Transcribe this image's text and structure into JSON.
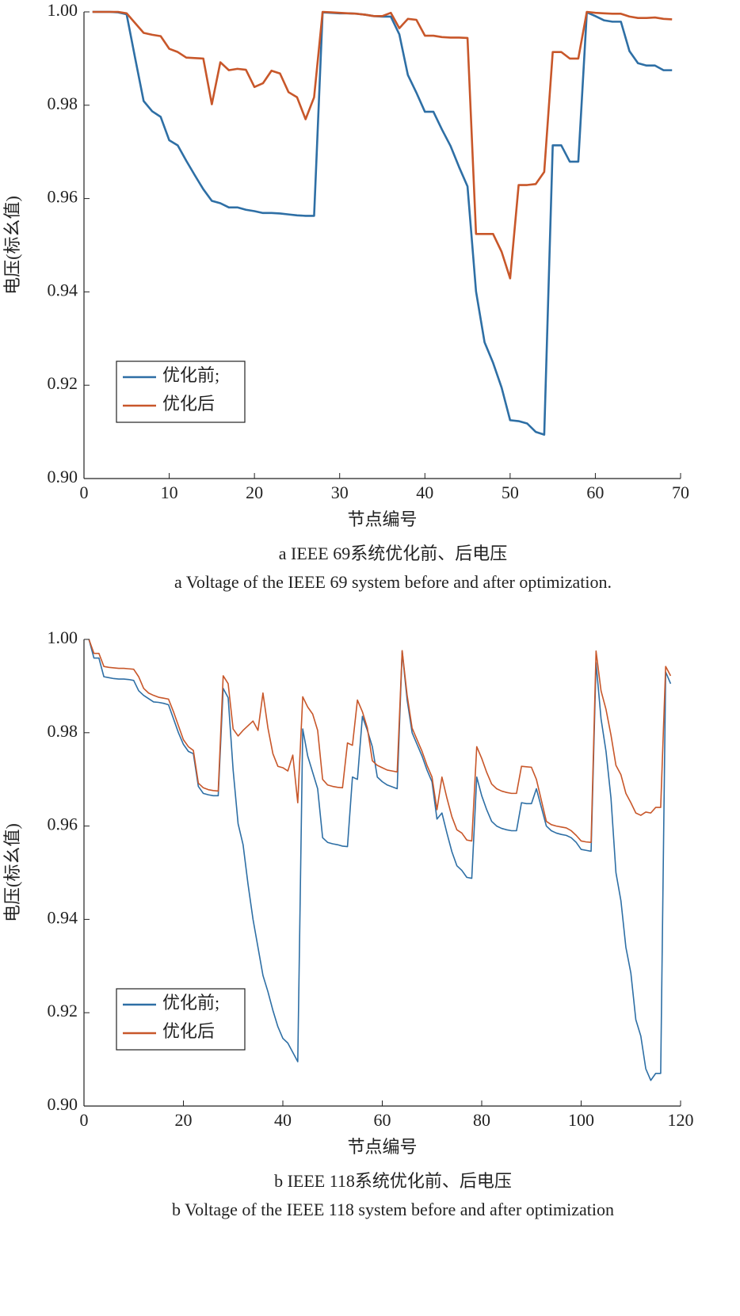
{
  "chart_data": [
    {
      "type": "line",
      "xlabel": "节点编号",
      "ylabel": "电压(标幺值)",
      "caption": "a  IEEE 69系统优化前、后电压",
      "caption_en": "a  Voltage of the IEEE 69 system before and after optimization.",
      "xlim": [
        0,
        70
      ],
      "xticks": [
        0,
        10,
        20,
        30,
        40,
        50,
        60,
        70
      ],
      "ylim": [
        0.9,
        1.0
      ],
      "yticks": [
        {
          "value": 0.9,
          "label": "0.90"
        },
        {
          "value": 0.92,
          "label": "0.92"
        },
        {
          "value": 0.94,
          "label": "0.94"
        },
        {
          "value": 0.96,
          "label": "0.96"
        },
        {
          "value": 0.98,
          "label": "0.98"
        },
        {
          "value": 1.0,
          "label": "1.00"
        }
      ],
      "legend": "lower left",
      "x": [
        1,
        2,
        3,
        4,
        5,
        6,
        7,
        8,
        9,
        10,
        11,
        12,
        13,
        14,
        15,
        16,
        17,
        18,
        19,
        20,
        21,
        22,
        23,
        24,
        25,
        26,
        27,
        28,
        29,
        30,
        31,
        32,
        33,
        34,
        35,
        36,
        37,
        38,
        39,
        40,
        41,
        42,
        43,
        44,
        45,
        46,
        47,
        48,
        49,
        50,
        51,
        52,
        53,
        54,
        55,
        56,
        57,
        58,
        59,
        60,
        61,
        62,
        63,
        64,
        65,
        66,
        67,
        68,
        69
      ],
      "series": [
        {
          "name": "优化前;",
          "color": "#2e6fa5",
          "values": [
            1.0,
            1.0,
            1.0,
            0.9999,
            0.9995,
            0.9901,
            0.9809,
            0.9787,
            0.9775,
            0.9725,
            0.9714,
            0.9681,
            0.965,
            0.962,
            0.9595,
            0.959,
            0.9581,
            0.9581,
            0.9576,
            0.9573,
            0.9569,
            0.9569,
            0.9568,
            0.9566,
            0.9564,
            0.9563,
            0.9563,
            0.9999,
            0.9998,
            0.9997,
            0.9997,
            0.9996,
            0.9994,
            0.9991,
            0.999,
            0.999,
            0.9952,
            0.9865,
            0.9827,
            0.9786,
            0.9786,
            0.9748,
            0.9713,
            0.9668,
            0.9626,
            0.9401,
            0.9292,
            0.9248,
            0.9195,
            0.9125,
            0.9123,
            0.9118,
            0.91,
            0.9094,
            0.9714,
            0.9714,
            0.9679,
            0.9679,
            0.9999,
            0.9991,
            0.9982,
            0.9979,
            0.9979,
            0.9916,
            0.989,
            0.9885,
            0.9885,
            0.9875,
            0.9875
          ]
        },
        {
          "name": "优化后",
          "color": "#c8572a",
          "values": [
            1.0,
            1.0,
            1.0,
            1.0,
            0.9997,
            0.9976,
            0.9955,
            0.9951,
            0.9948,
            0.9921,
            0.9914,
            0.9902,
            0.9901,
            0.99,
            0.9802,
            0.9892,
            0.9875,
            0.9878,
            0.9876,
            0.9839,
            0.9847,
            0.9874,
            0.9868,
            0.9828,
            0.9817,
            0.977,
            0.9817,
            1.0,
            0.9999,
            0.9998,
            0.9997,
            0.9996,
            0.9994,
            0.9991,
            0.9991,
            0.9998,
            0.9965,
            0.9985,
            0.9983,
            0.9949,
            0.9949,
            0.9946,
            0.9945,
            0.9945,
            0.9944,
            0.9524,
            0.9524,
            0.9524,
            0.9486,
            0.9429,
            0.9629,
            0.9629,
            0.9631,
            0.9657,
            0.9914,
            0.9914,
            0.99,
            0.99,
            1.0,
            0.9998,
            0.9997,
            0.9996,
            0.9996,
            0.999,
            0.9987,
            0.9987,
            0.9988,
            0.9985,
            0.9984
          ]
        }
      ]
    },
    {
      "type": "line",
      "xlabel": "节点编号",
      "ylabel": "电压(标幺值)",
      "caption": "b  IEEE 118系统优化前、后电压",
      "caption_en": "b  Voltage of the IEEE 118 system before and after optimization",
      "xlim": [
        0,
        120
      ],
      "xticks": [
        0,
        20,
        40,
        60,
        80,
        100,
        120
      ],
      "ylim": [
        0.9,
        1.0
      ],
      "yticks": [
        {
          "value": 0.9,
          "label": "0.90"
        },
        {
          "value": 0.92,
          "label": "0.92"
        },
        {
          "value": 0.94,
          "label": "0.94"
        },
        {
          "value": 0.96,
          "label": "0.96"
        },
        {
          "value": 0.98,
          "label": "0.98"
        },
        {
          "value": 1.0,
          "label": "1.00"
        }
      ],
      "legend": "lower left",
      "x": [
        1,
        2,
        3,
        4,
        5,
        6,
        7,
        8,
        9,
        10,
        11,
        12,
        13,
        14,
        15,
        16,
        17,
        18,
        19,
        20,
        21,
        22,
        23,
        24,
        25,
        26,
        27,
        28,
        29,
        30,
        31,
        32,
        33,
        34,
        35,
        36,
        37,
        38,
        39,
        40,
        41,
        42,
        43,
        44,
        45,
        46,
        47,
        48,
        49,
        50,
        51,
        52,
        53,
        54,
        55,
        56,
        57,
        58,
        59,
        60,
        61,
        62,
        63,
        64,
        65,
        66,
        67,
        68,
        69,
        70,
        71,
        72,
        73,
        74,
        75,
        76,
        77,
        78,
        79,
        80,
        81,
        82,
        83,
        84,
        85,
        86,
        87,
        88,
        89,
        90,
        91,
        92,
        93,
        94,
        95,
        96,
        97,
        98,
        99,
        100,
        101,
        102,
        103,
        104,
        105,
        106,
        107,
        108,
        109,
        110,
        111,
        112,
        113,
        114,
        115,
        116,
        117,
        118
      ],
      "series": [
        {
          "name": "优化前;",
          "color": "#2e6fa5",
          "values": [
            1.0,
            0.996,
            0.996,
            0.992,
            0.9918,
            0.9916,
            0.9915,
            0.9915,
            0.9914,
            0.9912,
            0.989,
            0.988,
            0.9873,
            0.9866,
            0.9865,
            0.9863,
            0.986,
            0.983,
            0.98,
            0.9775,
            0.976,
            0.9755,
            0.9685,
            0.967,
            0.9667,
            0.9665,
            0.9665,
            0.9895,
            0.9875,
            0.972,
            0.9605,
            0.956,
            0.9475,
            0.94,
            0.934,
            0.928,
            0.9245,
            0.9205,
            0.917,
            0.9145,
            0.9135,
            0.9115,
            0.9095,
            0.9808,
            0.975,
            0.9715,
            0.968,
            0.9575,
            0.9565,
            0.9562,
            0.956,
            0.9557,
            0.9556,
            0.9705,
            0.97,
            0.9835,
            0.9805,
            0.977,
            0.9705,
            0.9695,
            0.9688,
            0.9684,
            0.968,
            0.9975,
            0.987,
            0.98,
            0.9775,
            0.975,
            0.972,
            0.9695,
            0.9615,
            0.9628,
            0.9585,
            0.9545,
            0.9515,
            0.9505,
            0.949,
            0.9488,
            0.9705,
            0.9665,
            0.9635,
            0.961,
            0.96,
            0.9595,
            0.9592,
            0.959,
            0.959,
            0.965,
            0.9648,
            0.9648,
            0.968,
            0.964,
            0.96,
            0.959,
            0.9585,
            0.9582,
            0.958,
            0.9575,
            0.9565,
            0.955,
            0.9548,
            0.9546,
            0.995,
            0.983,
            0.976,
            0.966,
            0.95,
            0.944,
            0.934,
            0.9285,
            0.9185,
            0.915,
            0.908,
            0.9055,
            0.907,
            0.907,
            0.993,
            0.9905
          ]
        },
        {
          "name": "优化后",
          "color": "#c8572a",
          "values": [
            1.0,
            0.997,
            0.997,
            0.9942,
            0.994,
            0.9939,
            0.9938,
            0.9938,
            0.9937,
            0.9936,
            0.992,
            0.9895,
            0.9885,
            0.988,
            0.9876,
            0.9874,
            0.9872,
            0.9845,
            0.9815,
            0.9785,
            0.977,
            0.9762,
            0.9692,
            0.9682,
            0.9678,
            0.9676,
            0.9675,
            0.9922,
            0.9905,
            0.9808,
            0.9793,
            0.9805,
            0.9815,
            0.9825,
            0.9805,
            0.9885,
            0.981,
            0.9755,
            0.9728,
            0.9725,
            0.9718,
            0.9752,
            0.965,
            0.9877,
            0.9855,
            0.984,
            0.9805,
            0.97,
            0.9688,
            0.9685,
            0.9683,
            0.9682,
            0.9778,
            0.9773,
            0.987,
            0.9845,
            0.981,
            0.974,
            0.973,
            0.9725,
            0.972,
            0.9718,
            0.9716,
            0.9976,
            0.988,
            0.981,
            0.9785,
            0.976,
            0.973,
            0.9705,
            0.9635,
            0.9705,
            0.966,
            0.962,
            0.9592,
            0.9585,
            0.957,
            0.9568,
            0.977,
            0.9745,
            0.9715,
            0.969,
            0.968,
            0.9675,
            0.9672,
            0.967,
            0.967,
            0.9728,
            0.9727,
            0.9726,
            0.97,
            0.9655,
            0.961,
            0.9603,
            0.96,
            0.9598,
            0.9596,
            0.959,
            0.958,
            0.9568,
            0.9566,
            0.9565,
            0.9975,
            0.989,
            0.985,
            0.9795,
            0.973,
            0.971,
            0.967,
            0.965,
            0.9628,
            0.9623,
            0.963,
            0.9628,
            0.964,
            0.964,
            0.9942,
            0.9922
          ]
        }
      ]
    }
  ]
}
